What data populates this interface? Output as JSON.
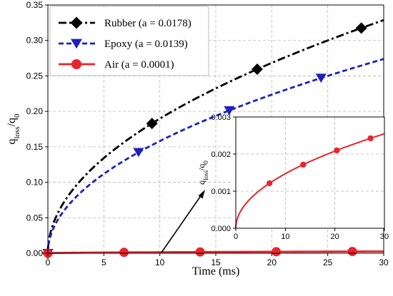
{
  "chart_data": [
    {
      "type": "line",
      "xlabel": "Time (ms)",
      "ylabel": "q_loss/q_0",
      "xlim": [
        0,
        30
      ],
      "ylim": [
        0,
        0.35
      ],
      "xticks": [
        0,
        5,
        10,
        15,
        20,
        25,
        30
      ],
      "yticks": [
        0.0,
        0.05,
        0.1,
        0.15,
        0.2,
        0.25,
        0.3,
        0.35
      ],
      "xtick_labels": [
        "0",
        "5",
        "10",
        "15",
        "20",
        "25",
        "30"
      ],
      "ytick_labels": [
        "0.00",
        "0.05",
        "0.10",
        "0.15",
        "0.20",
        "0.25",
        "0.30",
        "0.35"
      ],
      "grid": true,
      "legend_position": "top-left",
      "series": [
        {
          "name": "Rubber (a = 0.0178)",
          "color": "#000000",
          "line_style": "dash-dot",
          "marker": "diamond",
          "coefficient": 0.06,
          "markers_x": [
            0,
            9.3,
            18.7,
            28.0
          ]
        },
        {
          "name": "Epoxy (a = 0.0139)",
          "color": "#1f1fbf",
          "line_style": "dashed",
          "marker": "triangle-down",
          "coefficient": 0.05,
          "markers_x": [
            0,
            8.1,
            16.2,
            24.4
          ]
        },
        {
          "name": "Air (a  = 0.0001)",
          "color": "#e8252b",
          "line_style": "solid",
          "marker": "circle",
          "coefficient": 0.000465,
          "markers_x": [
            0,
            6.8,
            13.6,
            20.4,
            27.2
          ]
        }
      ]
    },
    {
      "type": "line",
      "role": "inset",
      "xlabel": "",
      "ylabel": "q_loss/q_0",
      "xlim": [
        0,
        30
      ],
      "ylim": [
        0,
        0.003
      ],
      "xticks": [
        0,
        10,
        20,
        30
      ],
      "yticks": [
        0.0,
        0.001,
        0.002,
        0.003
      ],
      "xtick_labels": [
        "0",
        "10",
        "20",
        "30"
      ],
      "ytick_labels": [
        "0.000",
        "0.001",
        "0.002",
        "0.003"
      ],
      "grid": true,
      "series": [
        {
          "name": "Air",
          "color": "#e8252b",
          "line_style": "solid",
          "marker": "circle",
          "coefficient": 0.000465,
          "markers_x": [
            6.8,
            13.6,
            20.4,
            27.2
          ]
        }
      ]
    }
  ]
}
